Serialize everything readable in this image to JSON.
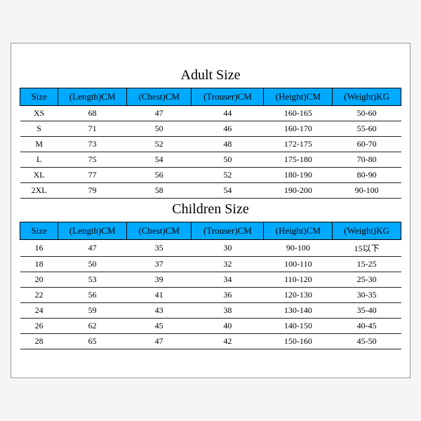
{
  "colors": {
    "page_bg": "#f5f5f5",
    "card_bg": "#ffffff",
    "card_border": "#9a9a9a",
    "header_bg": "#00aaff",
    "header_border": "#000000",
    "row_border": "#222222",
    "text": "#000000"
  },
  "typography": {
    "title_fontsize": 20,
    "header_fontsize": 13,
    "cell_fontsize": 12,
    "font_family": "Times New Roman, serif"
  },
  "columns": [
    {
      "key": "size",
      "label": "Size",
      "width_pct": 10
    },
    {
      "key": "length",
      "label": "(Length)CM",
      "width_pct": 18
    },
    {
      "key": "chest",
      "label": "(Chest)CM",
      "width_pct": 17
    },
    {
      "key": "trouser",
      "label": "(Trouser)CM",
      "width_pct": 19
    },
    {
      "key": "height",
      "label": "(Height)CM",
      "width_pct": 18
    },
    {
      "key": "weight",
      "label": "(Weight)KG",
      "width_pct": 18
    }
  ],
  "adult": {
    "title": "Adult Size",
    "rows": [
      {
        "size": "XS",
        "length": "68",
        "chest": "47",
        "trouser": "44",
        "height": "160-165",
        "weight": "50-60"
      },
      {
        "size": "S",
        "length": "71",
        "chest": "50",
        "trouser": "46",
        "height": "160-170",
        "weight": "55-60"
      },
      {
        "size": "M",
        "length": "73",
        "chest": "52",
        "trouser": "48",
        "height": "172-175",
        "weight": "60-70"
      },
      {
        "size": "L",
        "length": "75",
        "chest": "54",
        "trouser": "50",
        "height": "175-180",
        "weight": "70-80"
      },
      {
        "size": "XL",
        "length": "77",
        "chest": "56",
        "trouser": "52",
        "height": "180-190",
        "weight": "80-90"
      },
      {
        "size": "2XL",
        "length": "79",
        "chest": "58",
        "trouser": "54",
        "height": "190-200",
        "weight": "90-100"
      }
    ]
  },
  "children": {
    "title": "Children Size",
    "rows": [
      {
        "size": "16",
        "length": "47",
        "chest": "35",
        "trouser": "30",
        "height": "90-100",
        "weight": "15以下"
      },
      {
        "size": "18",
        "length": "50",
        "chest": "37",
        "trouser": "32",
        "height": "100-110",
        "weight": "15-25"
      },
      {
        "size": "20",
        "length": "53",
        "chest": "39",
        "trouser": "34",
        "height": "110-120",
        "weight": "25-30"
      },
      {
        "size": "22",
        "length": "56",
        "chest": "41",
        "trouser": "36",
        "height": "120-130",
        "weight": "30-35"
      },
      {
        "size": "24",
        "length": "59",
        "chest": "43",
        "trouser": "38",
        "height": "130-140",
        "weight": "35-40"
      },
      {
        "size": "26",
        "length": "62",
        "chest": "45",
        "trouser": "40",
        "height": "140-150",
        "weight": "40-45"
      },
      {
        "size": "28",
        "length": "65",
        "chest": "47",
        "trouser": "42",
        "height": "150-160",
        "weight": "45-50"
      }
    ]
  }
}
